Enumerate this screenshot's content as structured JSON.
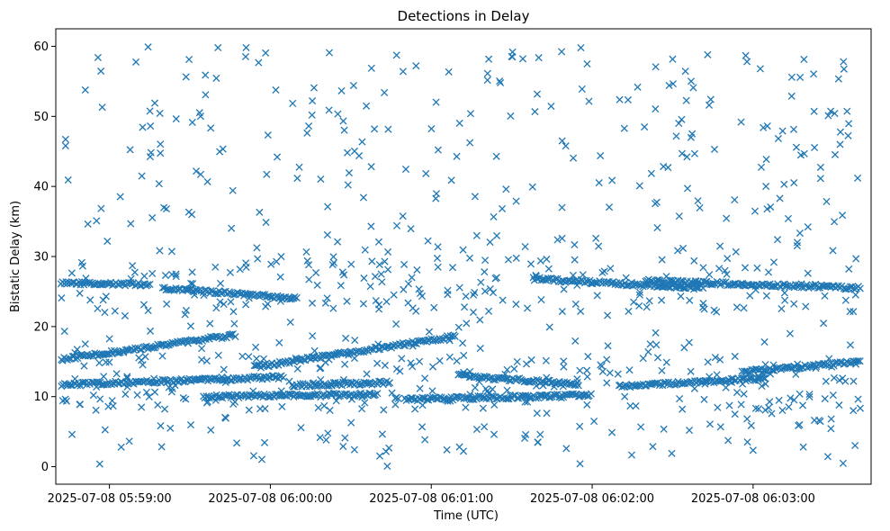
{
  "chart_data": {
    "type": "scatter",
    "title": "Detections in Delay",
    "xlabel": "Time (UTC)",
    "ylabel": "Bistatic Delay (km)",
    "x_ticks": [
      "2025-07-08 05:59:00",
      "2025-07-08 06:00:00",
      "2025-07-08 06:01:00",
      "2025-07-08 06:02:00",
      "2025-07-08 06:03:00"
    ],
    "y_ticks": [
      "0",
      "10",
      "20",
      "30",
      "40",
      "50",
      "60"
    ],
    "xlim": [
      "2025-07-08 05:58:40",
      "2025-07-08 06:03:44"
    ],
    "ylim": [
      -2.5,
      62.5
    ],
    "marker": "x",
    "color": "#1f77b4",
    "grid": false,
    "legend": "none",
    "tracks": [
      {
        "t_start": "2025-07-08 05:58:42",
        "t_end": "2025-07-08 05:59:47",
        "delay_start": 15.3,
        "delay_end": 18.8
      },
      {
        "t_start": "2025-07-08 05:59:54",
        "t_end": "2025-07-08 06:01:09",
        "delay_start": 14.2,
        "delay_end": 18.6
      },
      {
        "t_start": "2025-07-08 06:02:56",
        "t_end": "2025-07-08 06:03:40",
        "delay_start": 13.5,
        "delay_end": 15.0
      },
      {
        "t_start": "2025-07-08 05:58:42",
        "t_end": "2025-07-08 06:00:05",
        "delay_start": 11.7,
        "delay_end": 12.8
      },
      {
        "t_start": "2025-07-08 06:00:08",
        "t_end": "2025-07-08 06:00:45",
        "delay_start": 11.6,
        "delay_end": 12.0
      },
      {
        "t_start": "2025-07-08 06:01:10",
        "t_end": "2025-07-08 06:01:55",
        "delay_start": 13.0,
        "delay_end": 11.8
      },
      {
        "t_start": "2025-07-08 06:02:10",
        "t_end": "2025-07-08 06:03:05",
        "delay_start": 11.5,
        "delay_end": 12.6
      },
      {
        "t_start": "2025-07-08 05:58:42",
        "t_end": "2025-07-08 05:59:15",
        "delay_start": 26.2,
        "delay_end": 26.0
      },
      {
        "t_start": "2025-07-08 05:59:20",
        "t_end": "2025-07-08 06:00:10",
        "delay_start": 25.5,
        "delay_end": 24.0
      },
      {
        "t_start": "2025-07-08 06:01:38",
        "t_end": "2025-07-08 06:02:40",
        "delay_start": 26.8,
        "delay_end": 25.5
      },
      {
        "t_start": "2025-07-08 06:02:20",
        "t_end": "2025-07-08 06:03:40",
        "delay_start": 26.5,
        "delay_end": 25.5
      },
      {
        "t_start": "2025-07-08 05:59:35",
        "t_end": "2025-07-08 06:00:40",
        "delay_start": 10.0,
        "delay_end": 10.3
      },
      {
        "t_start": "2025-07-08 06:00:50",
        "t_end": "2025-07-08 06:02:00",
        "delay_start": 9.6,
        "delay_end": 10.2
      }
    ],
    "scattered_detections": "about 800 isolated detections spread over the full time range and 0–60 km delay"
  }
}
